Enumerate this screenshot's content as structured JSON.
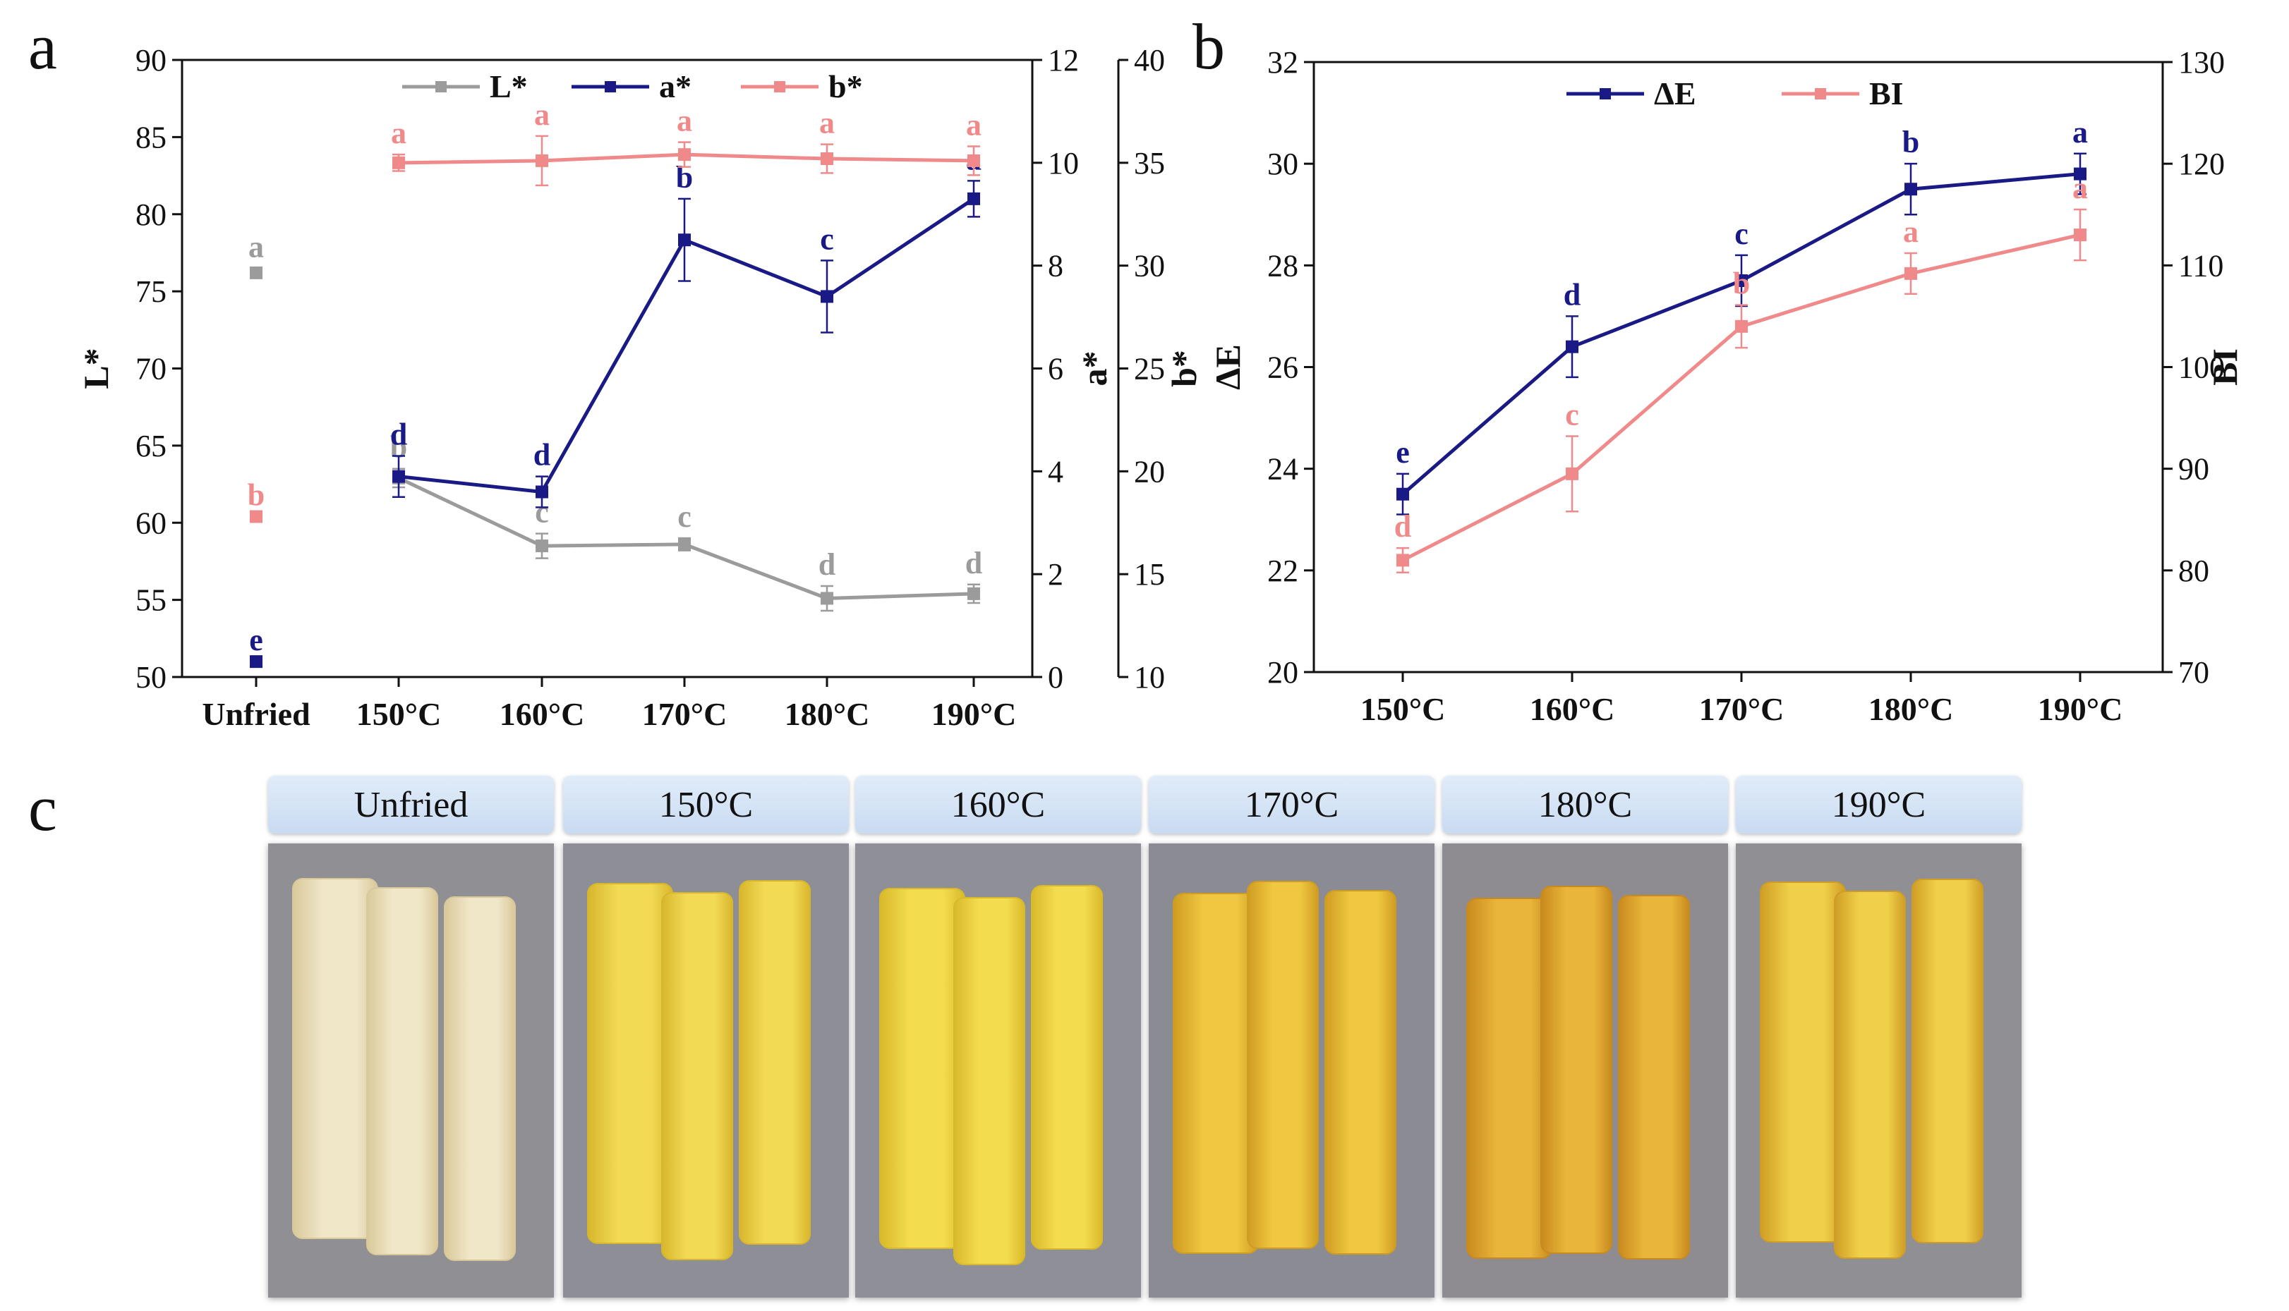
{
  "panels": {
    "a": {
      "letter": "a"
    },
    "b": {
      "letter": "b"
    },
    "c": {
      "letter": "c"
    }
  },
  "chart_data": [
    {
      "panel": "a",
      "type": "line",
      "categories": [
        "Unfried",
        "150°C",
        "160°C",
        "170°C",
        "180°C",
        "190°C"
      ],
      "y_axes": [
        {
          "id": "L",
          "label": "L*",
          "range": [
            50,
            90
          ],
          "ticks": [
            50,
            55,
            60,
            65,
            70,
            75,
            80,
            85,
            90
          ]
        },
        {
          "id": "a",
          "label": "a*",
          "range": [
            0,
            12
          ],
          "ticks": [
            0,
            2,
            4,
            6,
            8,
            10,
            12
          ]
        },
        {
          "id": "b",
          "label": "b*",
          "range": [
            10,
            40
          ],
          "ticks": [
            10,
            15,
            20,
            25,
            30,
            35,
            40
          ]
        }
      ],
      "legend_position": "top",
      "series": [
        {
          "name": "L*",
          "axis": "L",
          "color": "#9b9b9b",
          "connect_from": 1,
          "values": [
            76.2,
            62.9,
            58.5,
            58.6,
            55.1,
            55.4
          ],
          "errors": [
            0.3,
            0.6,
            0.8,
            0.4,
            0.8,
            0.6
          ],
          "letters": [
            "a",
            "b",
            "c",
            "c",
            "d",
            "d"
          ]
        },
        {
          "name": "a*",
          "axis": "a",
          "color": "#1a1a86",
          "connect_from": 1,
          "values": [
            0.3,
            3.9,
            3.6,
            8.5,
            7.4,
            9.3
          ],
          "errors": [
            0,
            0.4,
            0.3,
            0.8,
            0.7,
            0.35
          ],
          "letters": [
            "e",
            "d",
            "d",
            "b",
            "c",
            "a"
          ]
        },
        {
          "name": "b*",
          "axis": "b",
          "color": "#f08a8a",
          "connect_from": 1,
          "values": [
            17.8,
            35.0,
            35.1,
            35.4,
            35.2,
            35.1
          ],
          "errors": [
            0,
            0.4,
            1.2,
            0.6,
            0.7,
            0.7
          ],
          "letters": [
            "b",
            "a",
            "a",
            "a",
            "a",
            "a"
          ]
        }
      ]
    },
    {
      "panel": "b",
      "type": "line",
      "categories": [
        "150°C",
        "160°C",
        "170°C",
        "180°C",
        "190°C"
      ],
      "y_axes": [
        {
          "id": "dE",
          "label": "ΔE",
          "range": [
            20,
            32
          ],
          "ticks": [
            20,
            22,
            24,
            26,
            28,
            30,
            32
          ]
        },
        {
          "id": "BI",
          "label": "BI",
          "range": [
            70,
            130
          ],
          "ticks": [
            70,
            80,
            90,
            100,
            110,
            120,
            130
          ]
        }
      ],
      "legend_position": "top",
      "series": [
        {
          "name": "ΔE",
          "axis": "dE",
          "color": "#1a1a86",
          "connect_from": 0,
          "values": [
            23.5,
            26.4,
            27.7,
            29.5,
            29.8
          ],
          "errors": [
            0.4,
            0.6,
            0.5,
            0.5,
            0.4
          ],
          "letters": [
            "e",
            "d",
            "c",
            "b",
            "a"
          ]
        },
        {
          "name": "BI",
          "axis": "BI",
          "color": "#f08a8a",
          "connect_from": 0,
          "values": [
            81,
            89.5,
            104,
            109.2,
            113
          ],
          "errors": [
            1.2,
            3.7,
            2.1,
            2.0,
            2.5
          ],
          "letters": [
            "d",
            "c",
            "b",
            "a",
            "a"
          ]
        }
      ]
    }
  ],
  "photos": {
    "items": [
      {
        "label": "Unfried",
        "bg": "#8f8f94",
        "fry": "#f0e6c8",
        "fry_dark": "#d9c99a"
      },
      {
        "label": "150°C",
        "bg": "#8e8e96",
        "fry": "#f2da55",
        "fry_dark": "#d8b62c"
      },
      {
        "label": "160°C",
        "bg": "#8f9097",
        "fry": "#f3dc4e",
        "fry_dark": "#d9b92a"
      },
      {
        "label": "170°C",
        "bg": "#8b8c93",
        "fry": "#efc740",
        "fry_dark": "#cf9c22"
      },
      {
        "label": "180°C",
        "bg": "#8e8c90",
        "fry": "#e9b53a",
        "fry_dark": "#c88a1e"
      },
      {
        "label": "190°C",
        "bg": "#8f8f94",
        "fry": "#f0d04a",
        "fry_dark": "#cf9d25"
      }
    ]
  }
}
